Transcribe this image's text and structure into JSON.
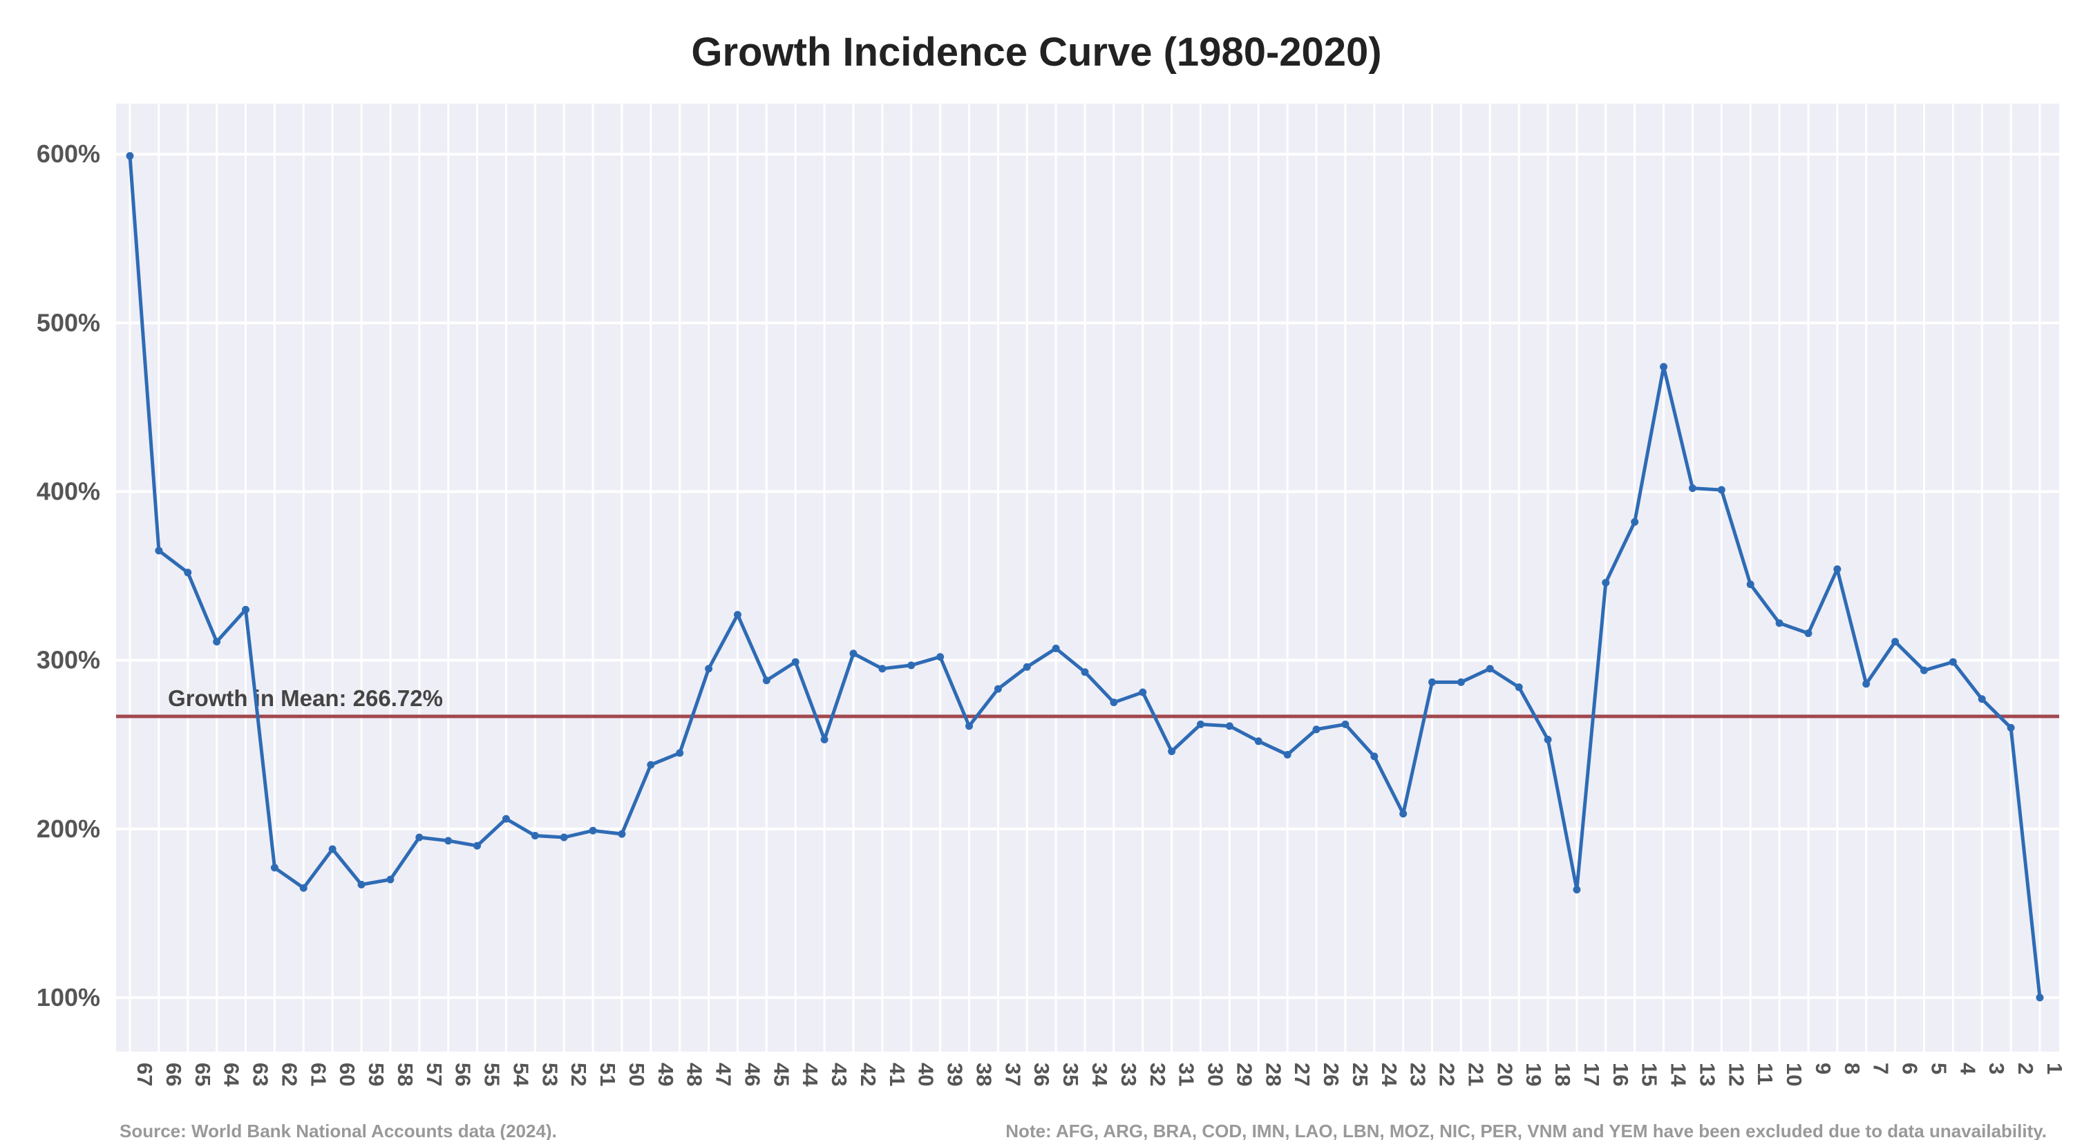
{
  "chart_data": {
    "type": "line",
    "title": "Growth Incidence Curve (1980-2020)",
    "xlabel": "",
    "ylabel": "",
    "ylim": [
      68,
      630
    ],
    "y_ticks": [
      100,
      200,
      300,
      400,
      500,
      600
    ],
    "y_tick_labels": [
      "100%",
      "200%",
      "300%",
      "400%",
      "500%",
      "600%"
    ],
    "categories": [
      "67",
      "66",
      "65",
      "64",
      "63",
      "62",
      "61",
      "60",
      "59",
      "58",
      "57",
      "56",
      "55",
      "54",
      "53",
      "52",
      "51",
      "50",
      "49",
      "48",
      "47",
      "46",
      "45",
      "44",
      "43",
      "42",
      "41",
      "40",
      "39",
      "38",
      "37",
      "36",
      "35",
      "34",
      "33",
      "32",
      "31",
      "30",
      "29",
      "28",
      "27",
      "26",
      "25",
      "24",
      "23",
      "22",
      "21",
      "20",
      "19",
      "18",
      "17",
      "16",
      "15",
      "14",
      "13",
      "12",
      "11",
      "10",
      "9",
      "8",
      "7",
      "6",
      "5",
      "4",
      "3",
      "2",
      "1"
    ],
    "series": [
      {
        "name": "Growth",
        "color": "#2e6bb5",
        "values": [
          599,
          365,
          352,
          311,
          330,
          177,
          165,
          188,
          167,
          170,
          195,
          193,
          190,
          206,
          196,
          195,
          199,
          197,
          238,
          245,
          295,
          327,
          288,
          299,
          253,
          304,
          295,
          297,
          302,
          261,
          283,
          296,
          307,
          293,
          275,
          281,
          246,
          262,
          261,
          252,
          244,
          259,
          262,
          243,
          209,
          287,
          287,
          295,
          284,
          253,
          164,
          346,
          382,
          474,
          402,
          401,
          345,
          322,
          316,
          354,
          286,
          311,
          294,
          299,
          277,
          260,
          100
        ]
      }
    ],
    "reference_line": {
      "value": 266.72,
      "label": "Growth in Mean: 266.72%",
      "color": "#a0474d"
    },
    "grid": true,
    "background": "#eeeef6",
    "source": "Source: World Bank National Accounts data (2024).",
    "note": "Note: AFG, ARG, BRA, COD, IMN, LAO, LBN, MOZ, NIC, PER, VNM and YEM have been excluded due to data unavailability."
  }
}
